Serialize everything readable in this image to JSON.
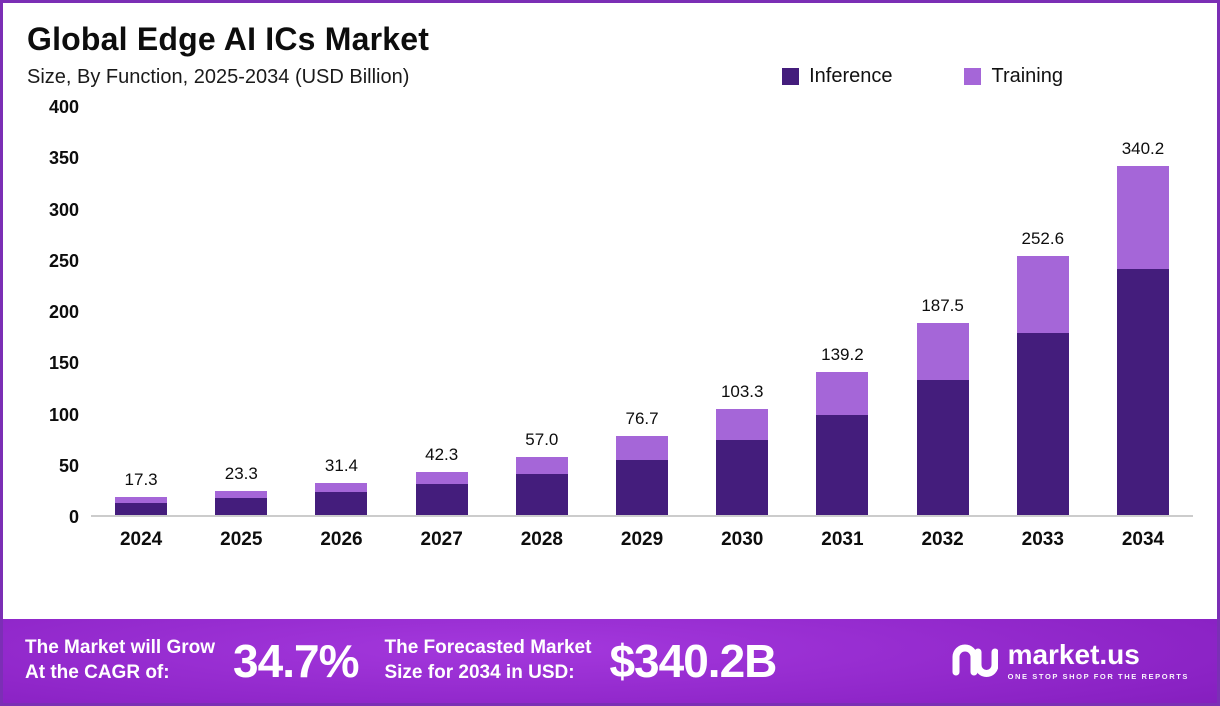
{
  "header": {
    "title": "Global Edge AI ICs Market",
    "subtitle": "Size, By Function, 2025-2034 (USD Billion)"
  },
  "legend": [
    {
      "label": "Inference",
      "color": "#441d7c"
    },
    {
      "label": "Training",
      "color": "#a566d8"
    }
  ],
  "chart_data": {
    "type": "bar",
    "stacked": true,
    "title": "Global Edge AI ICs Market",
    "subtitle": "Size, By Function, 2025-2034 (USD Billion)",
    "unit": "USD Billion",
    "categories": [
      "2024",
      "2025",
      "2026",
      "2027",
      "2028",
      "2029",
      "2030",
      "2031",
      "2032",
      "2033",
      "2034"
    ],
    "series": [
      {
        "name": "Inference",
        "color": "#441d7c",
        "values": [
          12.2,
          16.5,
          22.2,
          29.9,
          40.2,
          54.0,
          72.8,
          98.0,
          132.0,
          178.0,
          240.0
        ]
      },
      {
        "name": "Training",
        "color": "#a566d8",
        "values": [
          5.1,
          6.8,
          9.2,
          12.4,
          16.8,
          22.7,
          30.5,
          41.2,
          55.5,
          74.6,
          100.2
        ]
      }
    ],
    "totals": [
      "17.3",
      "23.3",
      "31.4",
      "42.3",
      "57.0",
      "76.7",
      "103.3",
      "139.2",
      "187.5",
      "252.6",
      "340.2"
    ],
    "ylim": [
      0,
      400
    ],
    "yticks": [
      0,
      50,
      100,
      150,
      200,
      250,
      300,
      350,
      400
    ],
    "grid": false,
    "legend_position": "top-right"
  },
  "footer": {
    "cagr_label_line1": "The Market will Grow",
    "cagr_label_line2": "At the CAGR of:",
    "cagr_value": "34.7%",
    "forecast_label_line1": "The Forecasted Market",
    "forecast_label_line2": "Size for 2034 in USD:",
    "forecast_value": "$340.2B",
    "brand_name": "market.us",
    "brand_tagline": "ONE STOP SHOP FOR THE REPORTS"
  }
}
